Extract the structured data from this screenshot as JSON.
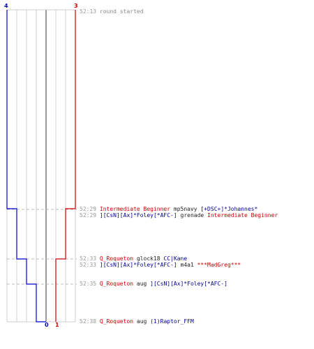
{
  "team_counts": {
    "blue_top": "4",
    "red_top": "3",
    "blue_bottom": "0",
    "red_bottom": "1"
  },
  "events": [
    {
      "time": "52:13",
      "parts": [
        {
          "text": "round started",
          "color": "gray"
        }
      ]
    },
    {
      "time": "52:29",
      "parts": [
        {
          "text": "Intermediate Beginner",
          "color": "red"
        },
        {
          "text": " mp5navy ",
          "color": "black"
        },
        {
          "text": "[+DSC+]*Johannes*",
          "color": "blue"
        }
      ]
    },
    {
      "time": "52:29",
      "parts": [
        {
          "text": "][CsN][Ax]*Foley[*AFC-]",
          "color": "blue"
        },
        {
          "text": " grenade ",
          "color": "black"
        },
        {
          "text": "Intermediate Beginner",
          "color": "red"
        }
      ]
    },
    {
      "time": "52:33",
      "parts": [
        {
          "text": "Q_Roqueton",
          "color": "red"
        },
        {
          "text": " glock18 ",
          "color": "black"
        },
        {
          "text": "CC|Kane",
          "color": "blue"
        }
      ]
    },
    {
      "time": "52:33",
      "parts": [
        {
          "text": "][CsN][Ax]*Foley[*AFC-]",
          "color": "blue"
        },
        {
          "text": " m4a1 ",
          "color": "black"
        },
        {
          "text": "***MadGreg***",
          "color": "red"
        }
      ]
    },
    {
      "time": "52:35",
      "parts": [
        {
          "text": "Q_Roqueton",
          "color": "red"
        },
        {
          "text": " aug ",
          "color": "black"
        },
        {
          "text": "][CsN][Ax]*Foley[*AFC-]",
          "color": "blue"
        }
      ]
    },
    {
      "time": "52:38",
      "parts": [
        {
          "text": "Q_Roqueton",
          "color": "red"
        },
        {
          "text": " aug ",
          "color": "black"
        },
        {
          "text": "(1)Raptor_FFM",
          "color": "blue"
        }
      ]
    }
  ],
  "colors": {
    "blue": "#0000cc",
    "red": "#cc0000",
    "grid": "#cfcfcf",
    "center": "#7a7a7a",
    "dash": "#bbbbbb"
  }
}
